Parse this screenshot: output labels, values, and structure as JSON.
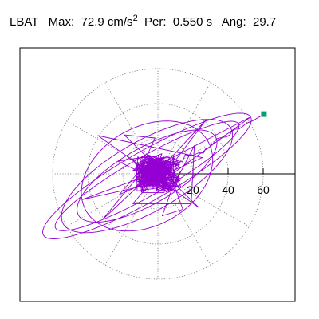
{
  "header": {
    "station": "LBAT",
    "max_label": "Max:",
    "max_value": "72.9",
    "max_unit": "cm/s",
    "max_unit_exp": "2",
    "period_label": "Per:",
    "period_value": "0.550 s",
    "angle_label": "Ang:",
    "angle_value": "29.7"
  },
  "chart_data": {
    "type": "line",
    "title": "",
    "xlabel": "",
    "ylabel": "",
    "polar_grid": true,
    "grid_radii": [
      20,
      40,
      60
    ],
    "spoke_angles_deg": [
      0,
      30,
      60,
      90,
      120,
      150,
      180,
      210,
      240,
      270,
      300,
      330
    ],
    "tick_labels": [
      "20",
      "40",
      "60"
    ],
    "xlim": [
      -80,
      80
    ],
    "ylim": [
      -80,
      80
    ],
    "trace_color": "#9400d3",
    "marker_color": "#00a070",
    "trace_amplitude": 72.9,
    "trace_angle_deg": 29.7
  }
}
